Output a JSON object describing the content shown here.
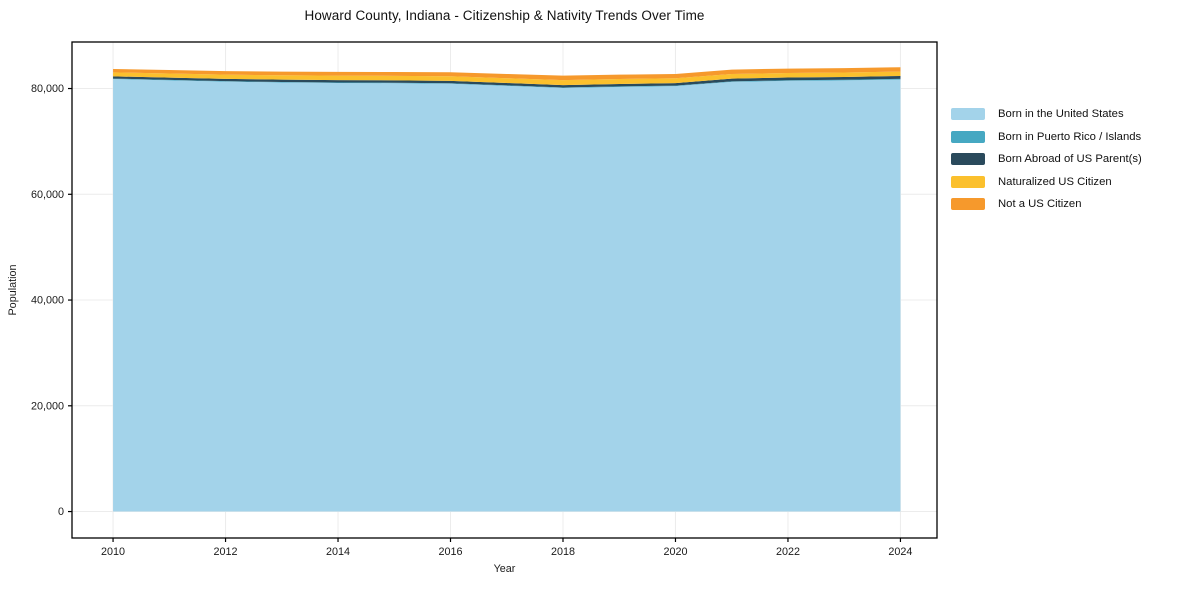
{
  "page": {
    "background": "#ffffff"
  },
  "chart_data": {
    "type": "area",
    "stacked": true,
    "title": "Howard County, Indiana - Citizenship & Nativity Trends Over Time",
    "xlabel": "Year",
    "ylabel": "Population",
    "x": [
      2010,
      2011,
      2012,
      2013,
      2014,
      2015,
      2016,
      2017,
      2018,
      2019,
      2020,
      2021,
      2022,
      2023,
      2024
    ],
    "series": [
      {
        "key": "born_us",
        "name": "Born in the United States",
        "color": "#a3d3ea",
        "values": [
          81800,
          81550,
          81300,
          81150,
          81050,
          81000,
          80900,
          80500,
          80100,
          80300,
          80450,
          81250,
          81450,
          81550,
          81700
        ]
      },
      {
        "key": "pr_islands",
        "name": "Born in Puerto Rico / Islands",
        "color": "#46a8c2",
        "values": [
          80,
          85,
          90,
          90,
          95,
          100,
          100,
          100,
          100,
          105,
          110,
          115,
          120,
          120,
          125
        ]
      },
      {
        "key": "born_abroad",
        "name": "Born Abroad of US Parent(s)",
        "color": "#2a4a5c",
        "values": [
          420,
          425,
          430,
          440,
          450,
          450,
          455,
          450,
          450,
          460,
          470,
          500,
          510,
          520,
          550
        ]
      },
      {
        "key": "naturalized",
        "name": "Naturalized US Citizen",
        "color": "#fbc02d",
        "values": [
          760,
          780,
          800,
          820,
          840,
          855,
          870,
          900,
          950,
          935,
          920,
          880,
          855,
          840,
          830
        ]
      },
      {
        "key": "not_citizen",
        "name": "Not a US Citizen",
        "color": "#f6992c",
        "values": [
          640,
          660,
          680,
          700,
          715,
          725,
          750,
          800,
          850,
          820,
          800,
          830,
          840,
          835,
          830
        ]
      }
    ],
    "xticks": [
      {
        "label": "2010",
        "value": 2010
      },
      {
        "label": "2012",
        "value": 2012
      },
      {
        "label": "2014",
        "value": 2014
      },
      {
        "label": "2016",
        "value": 2016
      },
      {
        "label": "2018",
        "value": 2018
      },
      {
        "label": "2020",
        "value": 2020
      },
      {
        "label": "2022",
        "value": 2022
      },
      {
        "label": "2024",
        "value": 2024
      }
    ],
    "yticks": [
      {
        "label": "0",
        "value": 0
      },
      {
        "label": "20,000",
        "value": 20000
      },
      {
        "label": "40,000",
        "value": 40000
      },
      {
        "label": "60,000",
        "value": 60000
      },
      {
        "label": "80,000",
        "value": 80000
      }
    ],
    "xlim": [
      2009.27,
      2024.65
    ],
    "ylim": [
      -5000,
      88800
    ],
    "grid": true,
    "legend_position": "center right",
    "text_color": "#1a1a1a",
    "grid_color": "#ececec",
    "spine_color": "#000000"
  }
}
